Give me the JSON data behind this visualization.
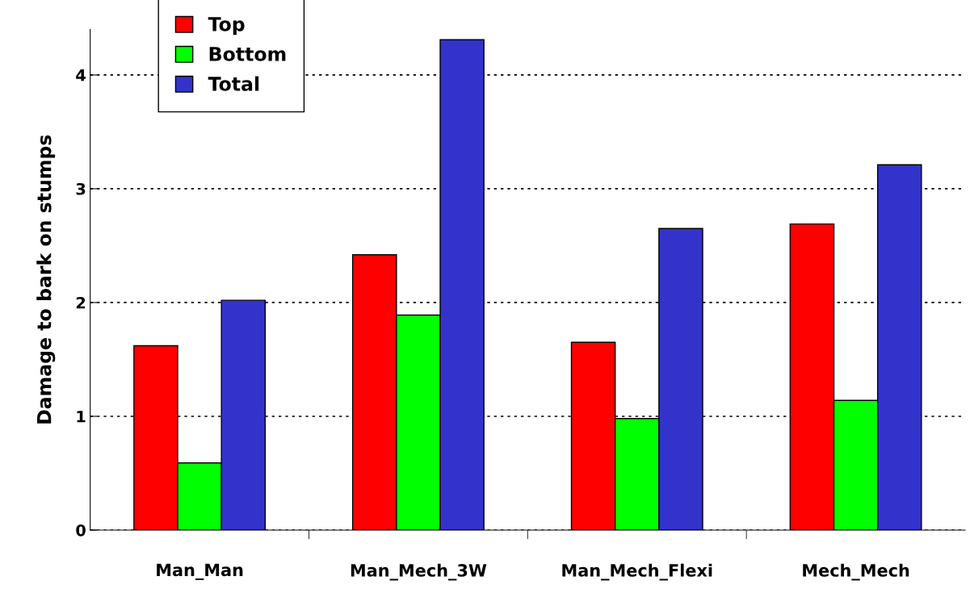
{
  "chart_data": {
    "type": "bar",
    "ylabel": "Damage to bark on stumps",
    "categories": [
      "Man_Man",
      "Man_Mech_3W",
      "Man_Mech_Flexi",
      "Mech_Mech"
    ],
    "series": [
      {
        "name": "Top",
        "color": "#ff0000",
        "values": [
          1.62,
          2.42,
          1.65,
          2.69
        ]
      },
      {
        "name": "Bottom",
        "color": "#00ff00",
        "values": [
          0.59,
          1.89,
          0.98,
          1.14
        ]
      },
      {
        "name": "Total",
        "color": "#3333cc",
        "values": [
          2.02,
          4.31,
          2.65,
          3.21
        ]
      }
    ],
    "ylim": [
      0,
      4.4
    ],
    "yticks": [
      0,
      1,
      2,
      3,
      4
    ],
    "grid": "y",
    "legend": "top left"
  }
}
